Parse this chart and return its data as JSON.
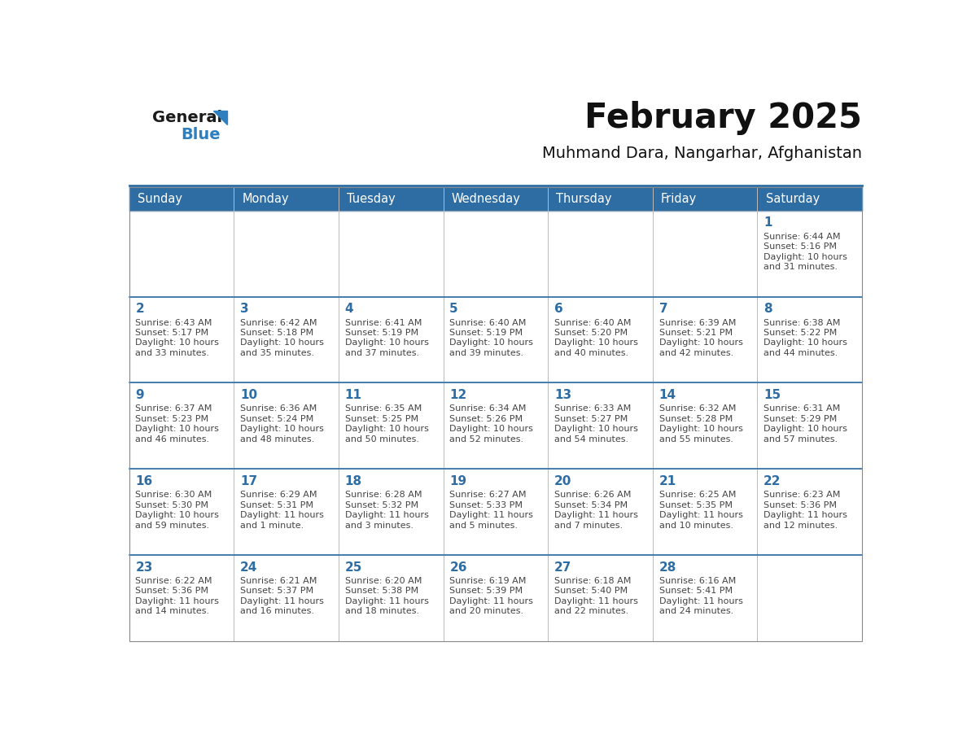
{
  "title": "February 2025",
  "subtitle": "Muhmand Dara, Nangarhar, Afghanistan",
  "header_bg": "#2E6DA4",
  "header_text": "#FFFFFF",
  "cell_bg_white": "#FFFFFF",
  "day_number_color": "#2E6DA4",
  "text_color": "#444444",
  "grid_color": "#BBBBBB",
  "row_sep_color": "#2E6DA4",
  "days_of_week": [
    "Sunday",
    "Monday",
    "Tuesday",
    "Wednesday",
    "Thursday",
    "Friday",
    "Saturday"
  ],
  "logo_color1": "#1a1a1a",
  "logo_color2": "#2E7FBF",
  "calendar_data": [
    [
      null,
      null,
      null,
      null,
      null,
      null,
      {
        "day": 1,
        "sunrise": "6:44 AM",
        "sunset": "5:16 PM",
        "daylight": "10 hours and 31 minutes."
      }
    ],
    [
      {
        "day": 2,
        "sunrise": "6:43 AM",
        "sunset": "5:17 PM",
        "daylight": "10 hours and 33 minutes."
      },
      {
        "day": 3,
        "sunrise": "6:42 AM",
        "sunset": "5:18 PM",
        "daylight": "10 hours and 35 minutes."
      },
      {
        "day": 4,
        "sunrise": "6:41 AM",
        "sunset": "5:19 PM",
        "daylight": "10 hours and 37 minutes."
      },
      {
        "day": 5,
        "sunrise": "6:40 AM",
        "sunset": "5:19 PM",
        "daylight": "10 hours and 39 minutes."
      },
      {
        "day": 6,
        "sunrise": "6:40 AM",
        "sunset": "5:20 PM",
        "daylight": "10 hours and 40 minutes."
      },
      {
        "day": 7,
        "sunrise": "6:39 AM",
        "sunset": "5:21 PM",
        "daylight": "10 hours and 42 minutes."
      },
      {
        "day": 8,
        "sunrise": "6:38 AM",
        "sunset": "5:22 PM",
        "daylight": "10 hours and 44 minutes."
      }
    ],
    [
      {
        "day": 9,
        "sunrise": "6:37 AM",
        "sunset": "5:23 PM",
        "daylight": "10 hours and 46 minutes."
      },
      {
        "day": 10,
        "sunrise": "6:36 AM",
        "sunset": "5:24 PM",
        "daylight": "10 hours and 48 minutes."
      },
      {
        "day": 11,
        "sunrise": "6:35 AM",
        "sunset": "5:25 PM",
        "daylight": "10 hours and 50 minutes."
      },
      {
        "day": 12,
        "sunrise": "6:34 AM",
        "sunset": "5:26 PM",
        "daylight": "10 hours and 52 minutes."
      },
      {
        "day": 13,
        "sunrise": "6:33 AM",
        "sunset": "5:27 PM",
        "daylight": "10 hours and 54 minutes."
      },
      {
        "day": 14,
        "sunrise": "6:32 AM",
        "sunset": "5:28 PM",
        "daylight": "10 hours and 55 minutes."
      },
      {
        "day": 15,
        "sunrise": "6:31 AM",
        "sunset": "5:29 PM",
        "daylight": "10 hours and 57 minutes."
      }
    ],
    [
      {
        "day": 16,
        "sunrise": "6:30 AM",
        "sunset": "5:30 PM",
        "daylight": "10 hours and 59 minutes."
      },
      {
        "day": 17,
        "sunrise": "6:29 AM",
        "sunset": "5:31 PM",
        "daylight": "11 hours and 1 minute."
      },
      {
        "day": 18,
        "sunrise": "6:28 AM",
        "sunset": "5:32 PM",
        "daylight": "11 hours and 3 minutes."
      },
      {
        "day": 19,
        "sunrise": "6:27 AM",
        "sunset": "5:33 PM",
        "daylight": "11 hours and 5 minutes."
      },
      {
        "day": 20,
        "sunrise": "6:26 AM",
        "sunset": "5:34 PM",
        "daylight": "11 hours and 7 minutes."
      },
      {
        "day": 21,
        "sunrise": "6:25 AM",
        "sunset": "5:35 PM",
        "daylight": "11 hours and 10 minutes."
      },
      {
        "day": 22,
        "sunrise": "6:23 AM",
        "sunset": "5:36 PM",
        "daylight": "11 hours and 12 minutes."
      }
    ],
    [
      {
        "day": 23,
        "sunrise": "6:22 AM",
        "sunset": "5:36 PM",
        "daylight": "11 hours and 14 minutes."
      },
      {
        "day": 24,
        "sunrise": "6:21 AM",
        "sunset": "5:37 PM",
        "daylight": "11 hours and 16 minutes."
      },
      {
        "day": 25,
        "sunrise": "6:20 AM",
        "sunset": "5:38 PM",
        "daylight": "11 hours and 18 minutes."
      },
      {
        "day": 26,
        "sunrise": "6:19 AM",
        "sunset": "5:39 PM",
        "daylight": "11 hours and 20 minutes."
      },
      {
        "day": 27,
        "sunrise": "6:18 AM",
        "sunset": "5:40 PM",
        "daylight": "11 hours and 22 minutes."
      },
      {
        "day": 28,
        "sunrise": "6:16 AM",
        "sunset": "5:41 PM",
        "daylight": "11 hours and 24 minutes."
      },
      null
    ]
  ]
}
